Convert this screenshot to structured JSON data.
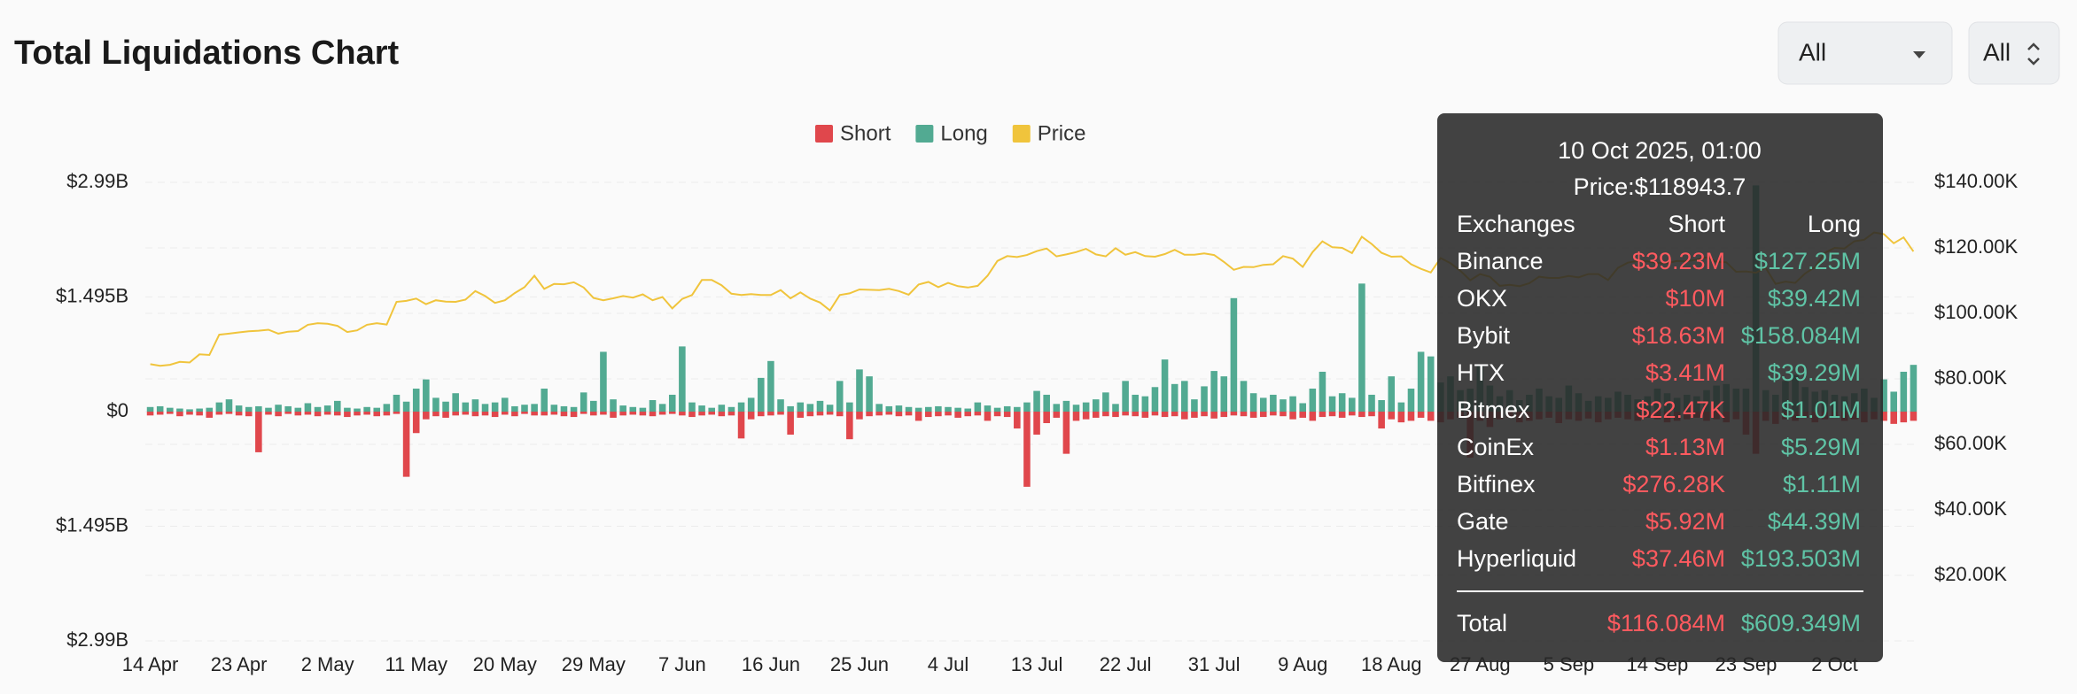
{
  "chart_data": {
    "title": "Total Liquidations Chart",
    "filters": [
      "All",
      "All"
    ],
    "categories": [
      "14 Apr",
      null,
      null,
      null,
      null,
      null,
      null,
      null,
      null,
      "23 Apr",
      null,
      null,
      null,
      null,
      null,
      null,
      null,
      null,
      "2 May",
      null,
      null,
      null,
      null,
      null,
      null,
      null,
      null,
      "11 May",
      null,
      null,
      null,
      null,
      null,
      null,
      null,
      null,
      "20 May",
      null,
      null,
      null,
      null,
      null,
      null,
      null,
      null,
      "29 May",
      null,
      null,
      null,
      null,
      null,
      null,
      null,
      null,
      "7 Jun",
      null,
      null,
      null,
      null,
      null,
      null,
      null,
      null,
      "16 Jun",
      null,
      null,
      null,
      null,
      null,
      null,
      null,
      null,
      "25 Jun",
      null,
      null,
      null,
      null,
      null,
      null,
      null,
      null,
      "4 Jul",
      null,
      null,
      null,
      null,
      null,
      null,
      null,
      null,
      "13 Jul",
      null,
      null,
      null,
      null,
      null,
      null,
      null,
      null,
      "22 Jul",
      null,
      null,
      null,
      null,
      null,
      null,
      null,
      null,
      "31 Jul",
      null,
      null,
      null,
      null,
      null,
      null,
      null,
      null,
      "9 Aug",
      null,
      null,
      null,
      null,
      null,
      null,
      null,
      null,
      "18 Aug",
      null,
      null,
      null,
      null,
      null,
      null,
      null,
      null,
      "27 Aug",
      null,
      null,
      null,
      null,
      null,
      null,
      null,
      null,
      "5 Sep",
      null,
      null,
      null,
      null,
      null,
      null,
      null,
      null,
      "14 Sep",
      null,
      null,
      null,
      null,
      null,
      null,
      null,
      null,
      "23 Sep",
      null,
      null,
      null,
      null,
      null,
      null,
      null,
      null,
      "2 Oct",
      null,
      null,
      null,
      null,
      null,
      null,
      null,
      null
    ],
    "series": [
      {
        "name": "Short",
        "type": "bar",
        "color": "#e0474c",
        "values": [
          -0.05,
          -0.04,
          -0.03,
          -0.06,
          -0.04,
          -0.05,
          -0.08,
          -0.04,
          -0.03,
          -0.05,
          -0.06,
          -0.53,
          -0.04,
          -0.06,
          -0.03,
          -0.05,
          -0.04,
          -0.06,
          -0.04,
          -0.05,
          -0.07,
          -0.05,
          -0.04,
          -0.06,
          -0.05,
          -0.03,
          -0.85,
          -0.28,
          -0.1,
          -0.06,
          -0.08,
          -0.05,
          -0.04,
          -0.06,
          -0.05,
          -0.07,
          -0.04,
          -0.06,
          -0.03,
          -0.05,
          -0.05,
          -0.04,
          -0.06,
          -0.07,
          -0.03,
          -0.05,
          -0.04,
          -0.08,
          -0.05,
          -0.04,
          -0.05,
          -0.06,
          -0.04,
          -0.03,
          -0.05,
          -0.07,
          -0.05,
          -0.04,
          -0.06,
          -0.05,
          -0.35,
          -0.1,
          -0.06,
          -0.05,
          -0.04,
          -0.3,
          -0.08,
          -0.06,
          -0.05,
          -0.04,
          -0.06,
          -0.36,
          -0.1,
          -0.06,
          -0.05,
          -0.04,
          -0.06,
          -0.05,
          -0.12,
          -0.07,
          -0.06,
          -0.05,
          -0.08,
          -0.06,
          -0.05,
          -0.12,
          -0.06,
          -0.07,
          -0.22,
          -0.98,
          -0.3,
          -0.15,
          -0.08,
          -0.55,
          -0.12,
          -0.1,
          -0.08,
          -0.06,
          -0.07,
          -0.05,
          -0.06,
          -0.08,
          -0.05,
          -0.07,
          -0.06,
          -0.1,
          -0.08,
          -0.06,
          -0.09,
          -0.07,
          -0.05,
          -0.06,
          -0.08,
          -0.07,
          -0.05,
          -0.06,
          -0.1,
          -0.08,
          -0.12,
          -0.07,
          -0.06,
          -0.08,
          -0.05,
          -0.07,
          -0.06,
          -0.22,
          -0.1,
          -0.14,
          -0.12,
          -0.08,
          -0.12,
          -0.14,
          -0.1,
          -0.08,
          -0.6,
          -0.12,
          -0.2,
          -0.1,
          -0.08,
          -0.14,
          -0.12,
          -0.1,
          -0.08,
          -0.15,
          -0.1,
          -0.12,
          -0.09,
          -0.14,
          -0.1,
          -0.08,
          -0.1,
          -0.12,
          -0.08,
          -0.1,
          -0.14,
          -0.12,
          -0.1,
          -0.08,
          -0.12,
          -0.1,
          -0.14,
          -0.1,
          -0.3,
          -0.55,
          -0.12,
          -0.16,
          -0.1,
          -0.12,
          -0.08,
          -0.14,
          -0.1,
          -0.08,
          -0.12,
          -0.1,
          -0.14,
          -0.1,
          -0.12,
          -0.16,
          -0.14,
          -0.12
        ]
      },
      {
        "name": "Long",
        "type": "bar",
        "color": "#52aa92",
        "values": [
          0.06,
          0.07,
          0.05,
          0.04,
          0.03,
          0.04,
          0.05,
          0.12,
          0.16,
          0.08,
          0.06,
          0.07,
          0.05,
          0.09,
          0.07,
          0.05,
          0.11,
          0.06,
          0.08,
          0.14,
          0.05,
          0.04,
          0.06,
          0.05,
          0.1,
          0.22,
          0.13,
          0.3,
          0.42,
          0.18,
          0.13,
          0.24,
          0.12,
          0.16,
          0.1,
          0.12,
          0.18,
          0.07,
          0.09,
          0.1,
          0.3,
          0.09,
          0.07,
          0.06,
          0.25,
          0.14,
          0.78,
          0.16,
          0.08,
          0.06,
          0.05,
          0.15,
          0.1,
          0.22,
          0.85,
          0.12,
          0.08,
          0.05,
          0.09,
          0.06,
          0.12,
          0.18,
          0.44,
          0.66,
          0.16,
          0.07,
          0.12,
          0.1,
          0.14,
          0.09,
          0.4,
          0.12,
          0.55,
          0.46,
          0.1,
          0.07,
          0.08,
          0.06,
          0.05,
          0.06,
          0.07,
          0.06,
          0.05,
          0.04,
          0.12,
          0.08,
          0.05,
          0.07,
          0.06,
          0.12,
          0.27,
          0.22,
          0.1,
          0.14,
          0.09,
          0.12,
          0.16,
          0.25,
          0.1,
          0.4,
          0.22,
          0.2,
          0.32,
          0.68,
          0.36,
          0.4,
          0.16,
          0.33,
          0.53,
          0.46,
          1.48,
          0.4,
          0.24,
          0.18,
          0.22,
          0.16,
          0.2,
          0.11,
          0.3,
          0.52,
          0.2,
          0.24,
          0.18,
          1.67,
          0.22,
          0.15,
          0.46,
          0.12,
          0.3,
          0.78,
          0.72,
          0.38,
          0.46,
          0.28,
          0.3,
          0.6,
          0.34,
          0.2,
          0.28,
          0.15,
          0.22,
          0.3,
          0.2,
          0.18,
          0.34,
          0.24,
          0.14,
          0.2,
          0.18,
          0.26,
          0.22,
          0.16,
          0.2,
          0.3,
          0.24,
          0.18,
          0.22,
          0.2,
          0.28,
          0.34,
          0.36,
          0.3,
          0.3,
          2.95,
          0.28,
          0.22,
          0.4,
          0.48,
          0.32,
          0.26,
          0.28,
          0.22,
          0.2,
          0.24,
          0.3,
          0.18,
          0.42,
          0.26,
          0.52,
          0.61
        ]
      },
      {
        "name": "Price",
        "type": "line",
        "axis": "y2",
        "color": "#f0c43c",
        "values": [
          84500,
          84000,
          84300,
          85200,
          85000,
          87500,
          87300,
          93500,
          93800,
          94200,
          94500,
          94700,
          95000,
          93800,
          94400,
          94600,
          96500,
          97000,
          96800,
          96200,
          94300,
          94800,
          96500,
          97000,
          96600,
          103500,
          103800,
          104500,
          102800,
          104000,
          103600,
          103500,
          104200,
          106800,
          105300,
          103200,
          104000,
          106200,
          108000,
          111500,
          107500,
          109000,
          108900,
          109500,
          107900,
          104700,
          104000,
          104600,
          105300,
          104800,
          105800,
          104000,
          105000,
          101500,
          104400,
          105600,
          110200,
          110200,
          108600,
          106000,
          105600,
          105900,
          105600,
          105600,
          107100,
          104600,
          106400,
          104500,
          103300,
          100900,
          105600,
          106100,
          107300,
          107200,
          107100,
          107500,
          106800,
          105700,
          108800,
          109600,
          108000,
          109300,
          108300,
          107900,
          108400,
          111500,
          116000,
          117500,
          117200,
          117800,
          119000,
          119800,
          117400,
          118000,
          118700,
          119700,
          118000,
          117400,
          119900,
          117900,
          118700,
          117500,
          117300,
          118100,
          119400,
          117900,
          117900,
          118300,
          117800,
          115700,
          113300,
          114200,
          114100,
          114800,
          115000,
          117500,
          116700,
          114200,
          118700,
          122000,
          120200,
          120000,
          118400,
          123400,
          121200,
          118500,
          117300,
          117400,
          115000,
          113600,
          112500,
          116900,
          115300,
          113000,
          110100,
          112000,
          111200,
          108400,
          108700,
          108300,
          109200,
          111200,
          110800,
          110800,
          111400,
          111000,
          112000,
          112000,
          110200,
          113900,
          115500,
          116000,
          115900,
          115400,
          115300,
          116000,
          115900,
          116400,
          117100,
          115700,
          115600,
          112700,
          112800,
          112400,
          113900,
          109000,
          109700,
          109300,
          112200,
          114100,
          118500,
          120000,
          119800,
          122000,
          122500,
          124700,
          124200,
          121400,
          123200,
          118900
        ]
      }
    ],
    "ylim": [
      -2.99,
      2.99
    ],
    "yticks": [
      {
        "value": 2.99,
        "label": "$2.99B"
      },
      {
        "value": 1.495,
        "label": "$1.495B"
      },
      {
        "value": 0,
        "label": "$0"
      },
      {
        "value": -1.495,
        "label": "$1.495B"
      },
      {
        "value": -2.99,
        "label": "$2.99B"
      }
    ],
    "y2lim": [
      0,
      140000
    ],
    "y2ticks": [
      {
        "value": 140000,
        "label": "$140.00K"
      },
      {
        "value": 120000,
        "label": "$120.00K"
      },
      {
        "value": 100000,
        "label": "$100.00K"
      },
      {
        "value": 80000,
        "label": "$80.00K"
      },
      {
        "value": 60000,
        "label": "$60.00K"
      },
      {
        "value": 40000,
        "label": "$40.00K"
      },
      {
        "value": 20000,
        "label": "$20.00K"
      }
    ],
    "grid": true,
    "legend": "top",
    "tooltip": {
      "title": "10 Oct 2025, 01:00",
      "price": "Price:$118943.7",
      "header": [
        "Exchanges",
        "Short",
        "Long"
      ],
      "rows": [
        [
          "Binance",
          "$39.23M",
          "$127.25M"
        ],
        [
          "OKX",
          "$10M",
          "$39.42M"
        ],
        [
          "Bybit",
          "$18.63M",
          "$158.084M"
        ],
        [
          "HTX",
          "$3.41M",
          "$39.29M"
        ],
        [
          "Bitmex",
          "$22.47K",
          "$1.01M"
        ],
        [
          "CoinEx",
          "$1.13M",
          "$5.29M"
        ],
        [
          "Bitfinex",
          "$276.28K",
          "$1.11M"
        ],
        [
          "Gate",
          "$5.92M",
          "$44.39M"
        ],
        [
          "Hyperliquid",
          "$37.46M",
          "$193.503M"
        ]
      ],
      "total": [
        "Total",
        "$116.084M",
        "$609.349M"
      ]
    }
  }
}
